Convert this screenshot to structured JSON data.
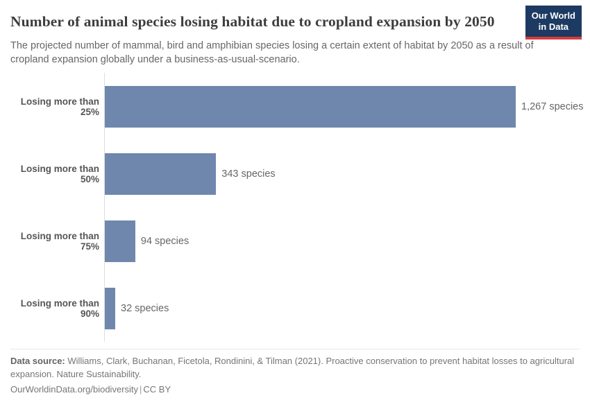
{
  "header": {
    "title": "Number of animal species losing habitat due to cropland expansion by 2050",
    "subtitle": "The projected number of mammal, bird and amphibian species losing a certain extent of habitat by 2050 as a result of cropland expansion globally under a business-as-usual-scenario.",
    "logo": {
      "line1": "Our World",
      "line2": "in Data"
    }
  },
  "chart_data": {
    "type": "bar",
    "orientation": "horizontal",
    "title": "Number of animal species losing habitat due to cropland expansion by 2050",
    "categories": [
      "Losing more than 25%",
      "Losing more than 50%",
      "Losing more than 75%",
      "Losing more than 90%"
    ],
    "values": [
      1267,
      343,
      94,
      32
    ],
    "value_labels": [
      "1,267 species",
      "343 species",
      "94 species",
      "32 species"
    ],
    "unit": "species",
    "xlim": [
      0,
      1267
    ],
    "grid": false,
    "legend": "none",
    "bar_color": "#6f87ad",
    "axis_color": "#dedede"
  },
  "footer": {
    "data_source_label": "Data source:",
    "data_source_text": " Williams, Clark, Buchanan, Ficetola, Rondinini, & Tilman (2021). Proactive conservation to prevent habitat losses to agricultural expansion. Nature Sustainability.",
    "link": "OurWorldinData.org/biodiversity",
    "separator": "|",
    "license": "CC BY"
  },
  "colors": {
    "bar": "#6f87ad",
    "logo_bg": "#1d3a63",
    "logo_stripe": "#d73c3c",
    "title": "#3d3d3d",
    "subtitle": "#666666",
    "category_label": "#555555",
    "value_label": "#666666",
    "axis": "#dedede"
  }
}
